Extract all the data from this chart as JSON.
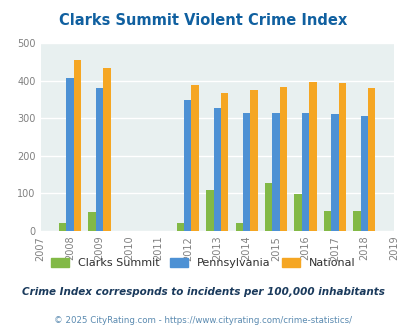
{
  "title": "Clarks Summit Violent Crime Index",
  "subtitle": "Crime Index corresponds to incidents per 100,000 inhabitants",
  "footer": "© 2025 CityRating.com - https://www.cityrating.com/crime-statistics/",
  "years": [
    2008,
    2009,
    2012,
    2013,
    2014,
    2015,
    2016,
    2017,
    2018
  ],
  "clarks_summit": [
    20,
    50,
    20,
    108,
    20,
    128,
    98,
    53,
    53
  ],
  "pennsylvania": [
    408,
    380,
    348,
    328,
    314,
    314,
    314,
    311,
    305
  ],
  "national": [
    455,
    432,
    387,
    367,
    376,
    383,
    397,
    394,
    379
  ],
  "colors": {
    "clarks_summit": "#82b946",
    "pennsylvania": "#4d91d4",
    "national": "#f5a623"
  },
  "xlim_years": [
    2007,
    2019
  ],
  "ylim": [
    0,
    500
  ],
  "yticks": [
    0,
    100,
    200,
    300,
    400,
    500
  ],
  "xticks": [
    2007,
    2008,
    2009,
    2010,
    2011,
    2012,
    2013,
    2014,
    2015,
    2016,
    2017,
    2018,
    2019
  ],
  "bg_color": "#e8f0f0",
  "title_color": "#1060a0",
  "subtitle_color": "#1a3a5c",
  "footer_color": "#5a8ab0",
  "bar_width": 0.25,
  "grid_color": "#ffffff"
}
